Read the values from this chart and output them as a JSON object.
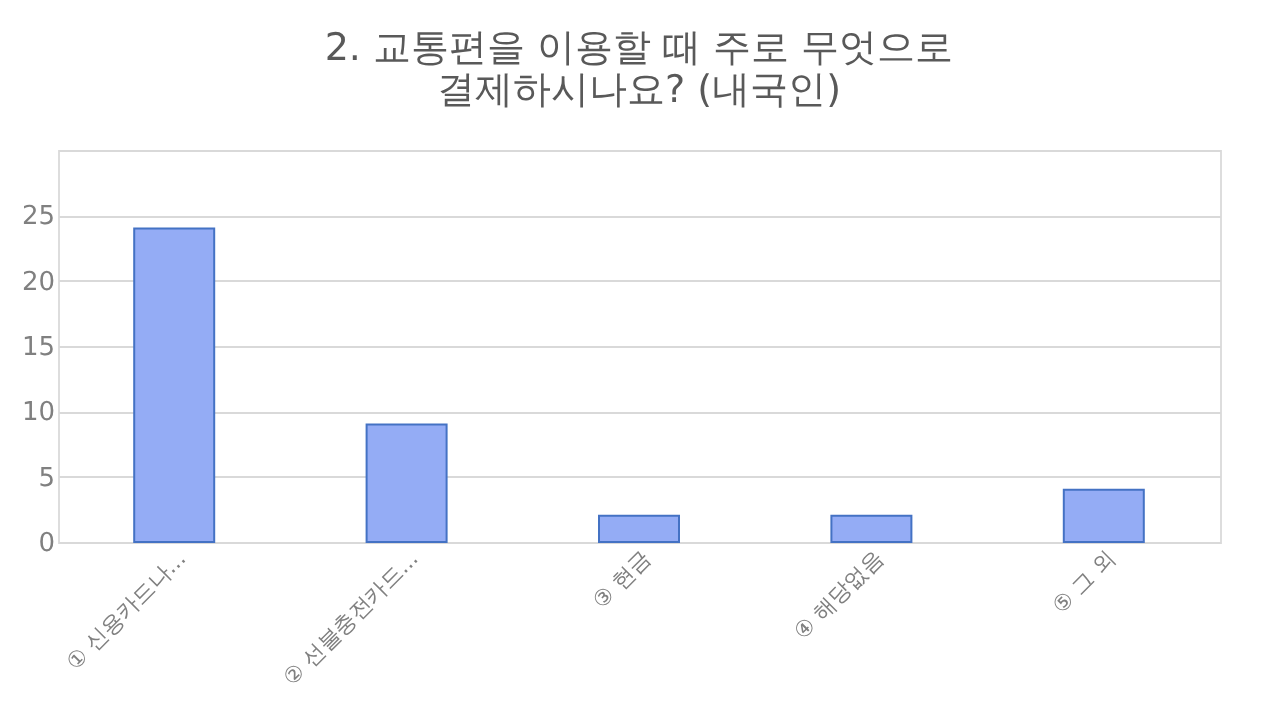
{
  "chart_data": {
    "type": "bar",
    "title": [
      "2. 교통편을 이용할 때 주로 무엇으로",
      "결제하시나요? (내국인)"
    ],
    "categories": [
      "① 신용카드나...",
      "② 선불충전카드...",
      "③ 현금",
      "④ 해당없음",
      "⑤ 그 외"
    ],
    "values": [
      24,
      9,
      2,
      2,
      4
    ],
    "color": "#94acf5",
    "ylim": [
      0,
      30
    ],
    "yticks": [
      0,
      5,
      10,
      15,
      20,
      25,
      {
        "value": 30,
        "label": null
      }
    ],
    "grid": "y"
  }
}
